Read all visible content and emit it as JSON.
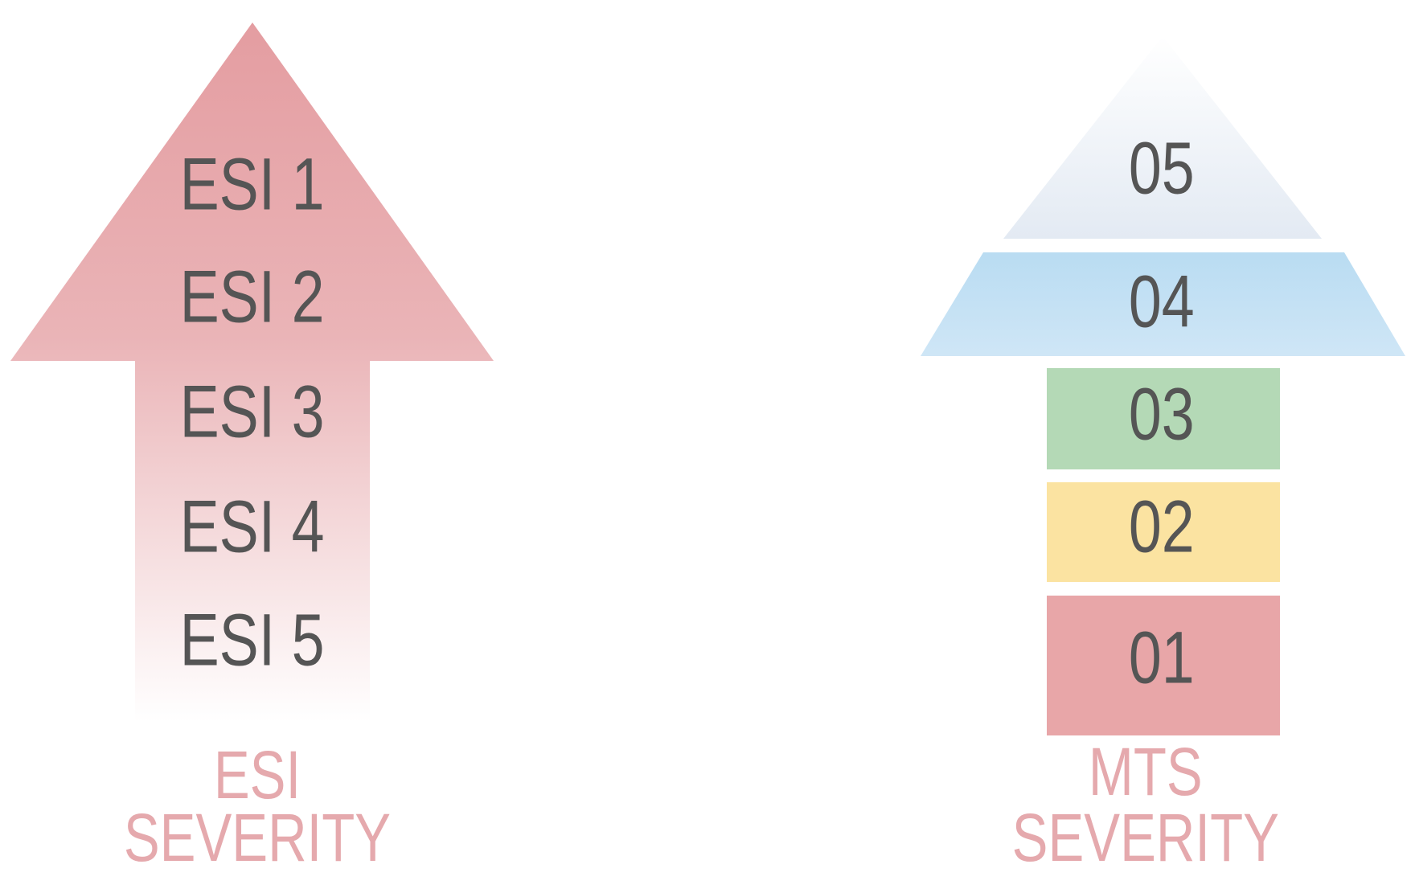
{
  "esi": {
    "levels": [
      "ESI 1",
      "ESI 2",
      "ESI 3",
      "ESI 4",
      "ESI 5"
    ],
    "label": [
      "ESI",
      "SEVERITY"
    ]
  },
  "mts": {
    "levels": [
      "05",
      "04",
      "03",
      "02",
      "01"
    ],
    "label": [
      "MTS",
      "SEVERITY"
    ]
  }
}
